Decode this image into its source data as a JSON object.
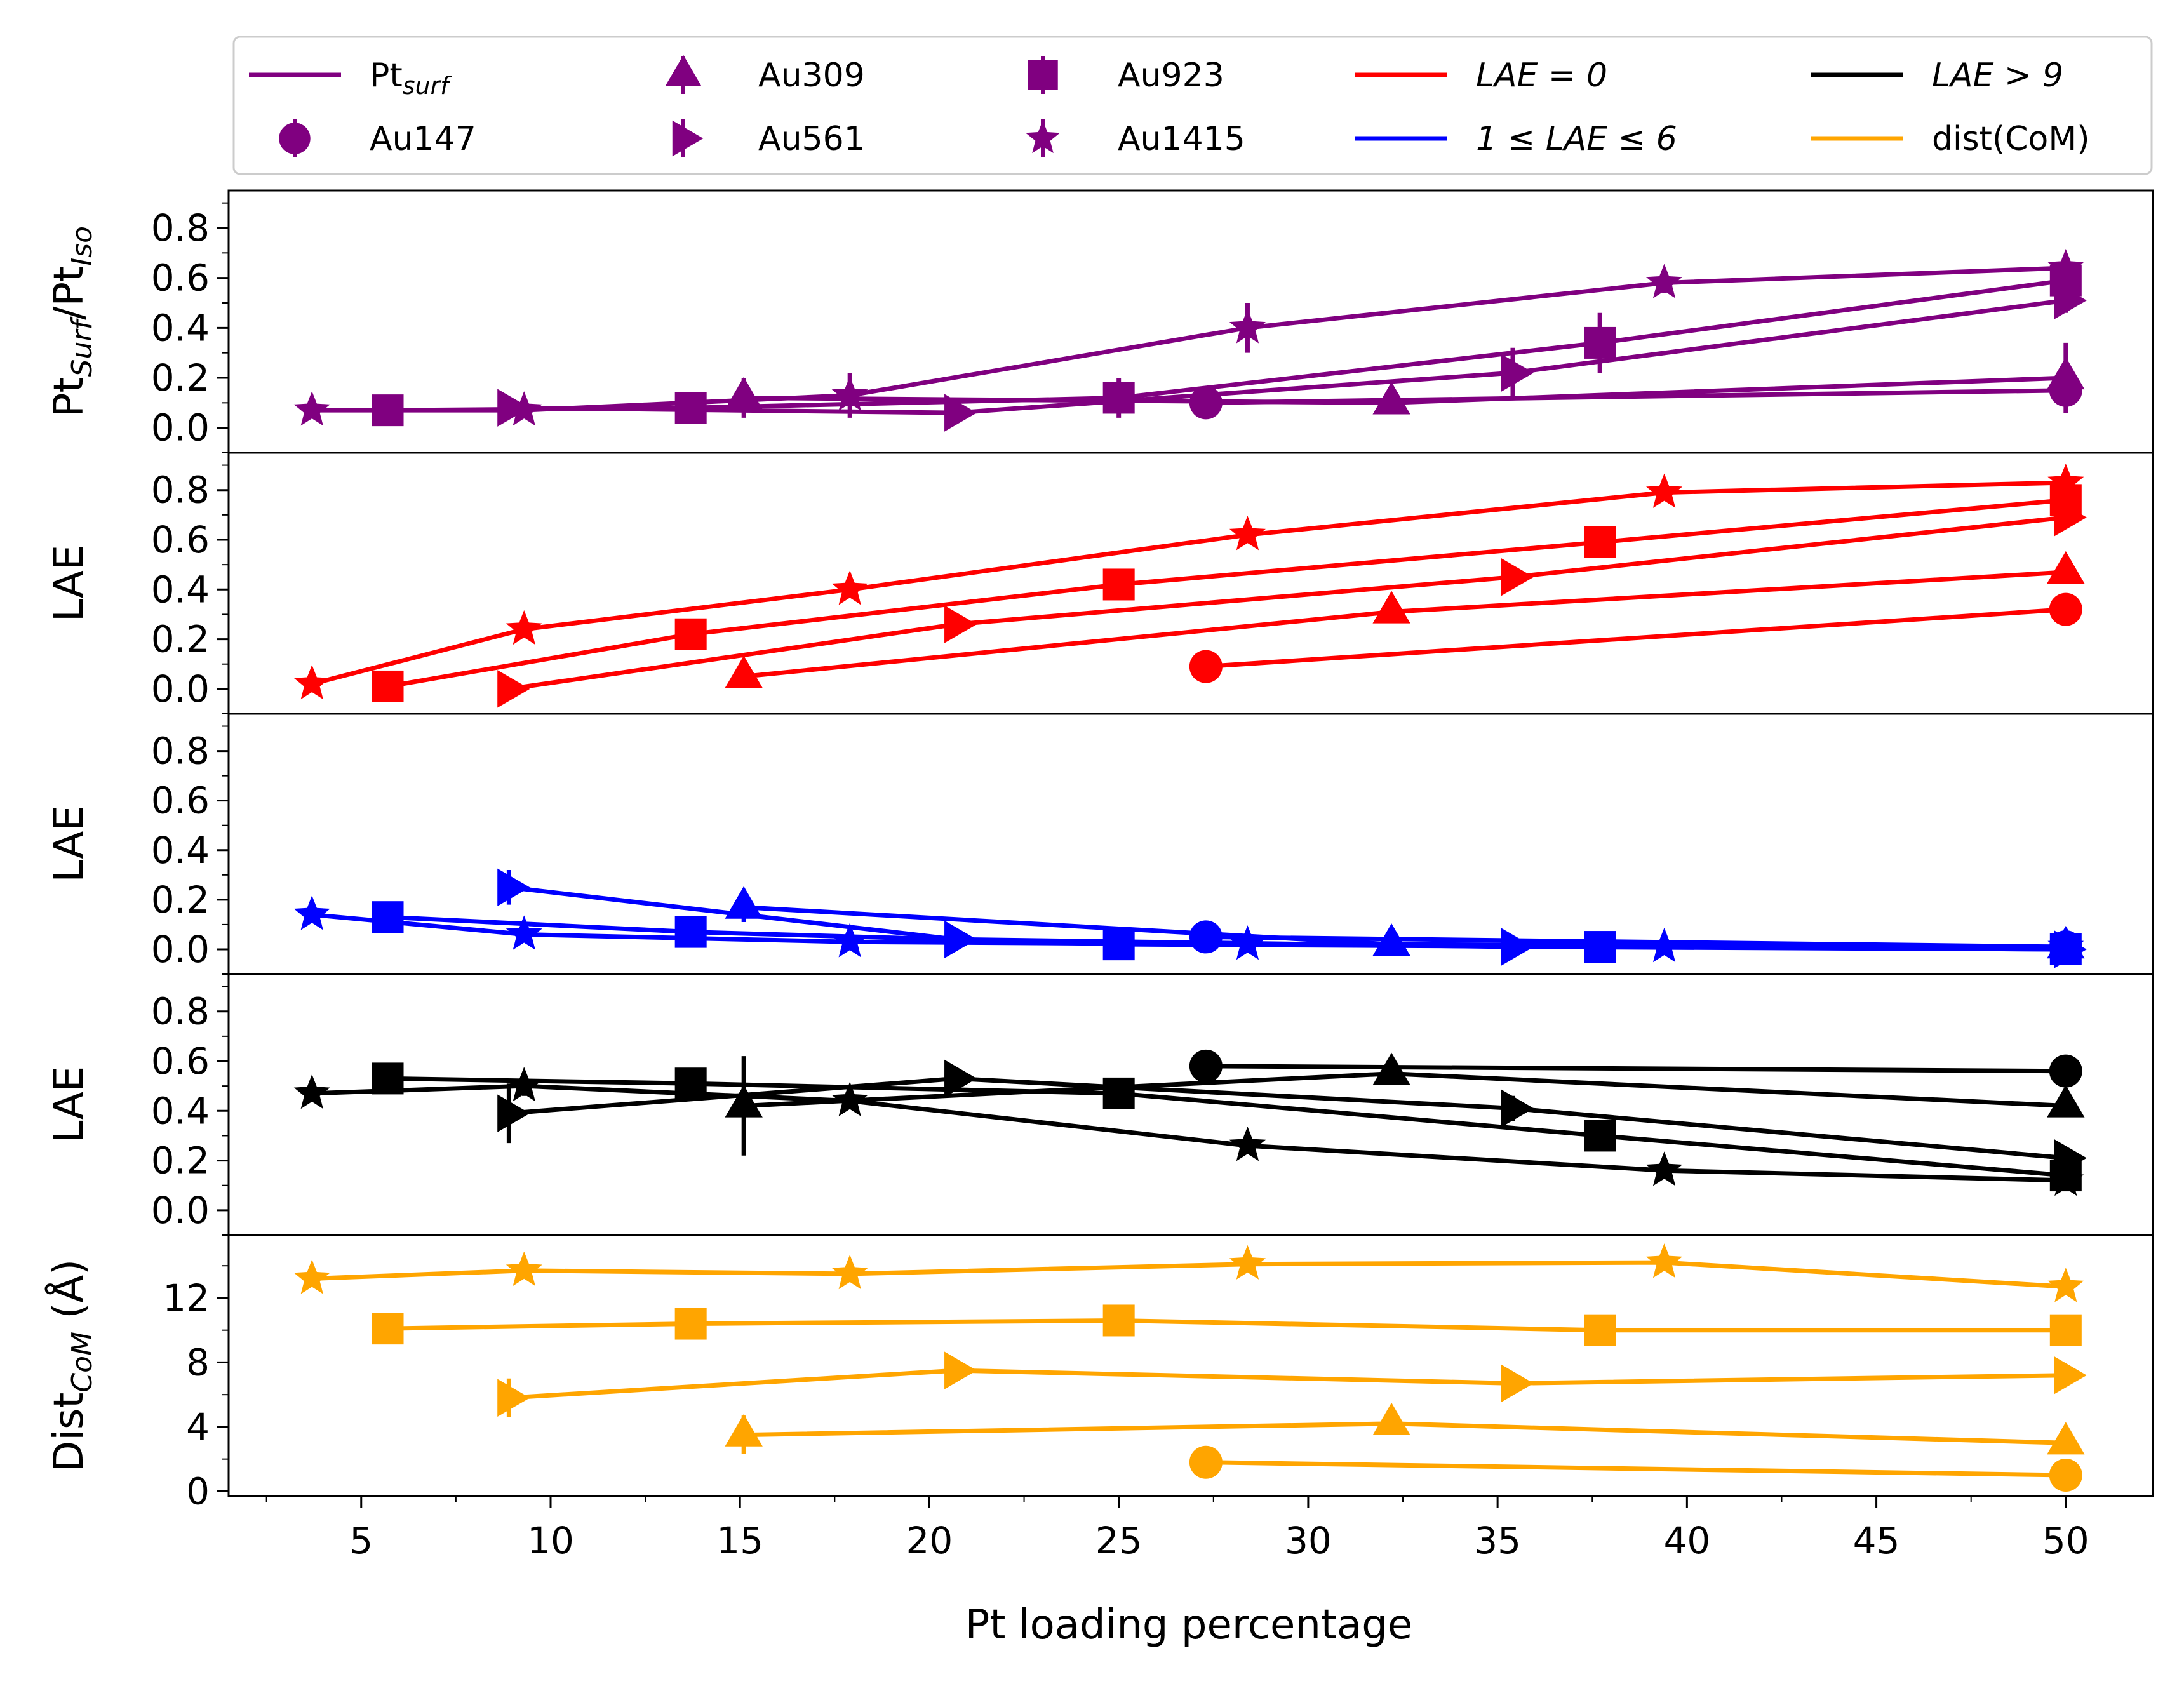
{
  "chart_data": {
    "type": "line",
    "xlabel": "Pt loading percentage",
    "xticks": [
      5,
      10,
      15,
      20,
      25,
      30,
      35,
      40,
      45,
      50
    ],
    "xlim": [
      1.5,
      52.3
    ],
    "colors": {
      "purple": "#800080",
      "red": "#ff0000",
      "blue": "#0000ff",
      "black": "#000000",
      "orange": "#ffa500"
    },
    "legend": {
      "placement": "top",
      "line_entries": [
        {
          "main": "Pt",
          "sub": "surf",
          "italic": false,
          "color": "#800080"
        },
        {
          "main": "LAE = 0",
          "sub": "",
          "italic": true,
          "color": "#ff0000"
        },
        {
          "main": "1 ≤ LAE ≤ 6",
          "sub": "",
          "italic": true,
          "color": "#0000ff"
        },
        {
          "main": "LAE > 9",
          "sub": "",
          "italic": true,
          "color": "#000000"
        },
        {
          "main": "dist(CoM)",
          "sub": "",
          "italic": false,
          "color": "#ffa500"
        }
      ],
      "marker_entries": [
        {
          "label": "Au147",
          "marker": "circle"
        },
        {
          "label": "Au309",
          "marker": "triangle"
        },
        {
          "label": "Au561",
          "marker": "triangle-right"
        },
        {
          "label": "Au923",
          "marker": "square"
        },
        {
          "label": "Au1415",
          "marker": "star"
        }
      ]
    },
    "panels": [
      {
        "ylabel_main": "Pt",
        "ylabel_sub1": "Surf",
        "ylabel_mid": "/Pt",
        "ylabel_sub2": "Iso",
        "color": "#800080",
        "ylim": [
          -0.1,
          0.95
        ],
        "yticks": [
          0.0,
          0.2,
          0.4,
          0.6,
          0.8
        ],
        "ytick_labels": [
          "0.0",
          "0.2",
          "0.4",
          "0.6",
          "0.8"
        ],
        "series": [
          {
            "marker": "circle",
            "x": [
              27.3,
              50.0
            ],
            "y": [
              0.1,
              0.15
            ],
            "err": [
              0.02,
              0.06
            ]
          },
          {
            "marker": "triangle",
            "x": [
              15.1,
              32.2,
              50.0
            ],
            "y": [
              0.12,
              0.1,
              0.2
            ],
            "err": [
              0.08,
              0.03,
              0.14
            ]
          },
          {
            "marker": "triangle-right",
            "x": [
              8.9,
              20.7,
              35.4,
              50.0
            ],
            "y": [
              0.08,
              0.06,
              0.22,
              0.51
            ],
            "err": [
              0.02,
              0.02,
              0.1,
              0.05
            ]
          },
          {
            "marker": "square",
            "x": [
              5.7,
              13.7,
              25.0,
              37.7,
              50.0
            ],
            "y": [
              0.07,
              0.08,
              0.12,
              0.34,
              0.59
            ],
            "err": [
              0.02,
              0.03,
              0.08,
              0.12,
              0.05
            ]
          },
          {
            "marker": "star",
            "x": [
              3.7,
              9.3,
              17.9,
              28.4,
              39.4,
              50.0
            ],
            "y": [
              0.07,
              0.07,
              0.13,
              0.4,
              0.58,
              0.64
            ],
            "err": [
              0.02,
              0.02,
              0.09,
              0.1,
              0.04,
              0.05
            ]
          }
        ]
      },
      {
        "ylabel_main": "LAE",
        "color": "#ff0000",
        "ylim": [
          -0.1,
          0.95
        ],
        "yticks": [
          0.0,
          0.2,
          0.4,
          0.6,
          0.8
        ],
        "ytick_labels": [
          "0.0",
          "0.2",
          "0.4",
          "0.6",
          "0.8"
        ],
        "series": [
          {
            "marker": "circle",
            "x": [
              27.3,
              50.0
            ],
            "y": [
              0.09,
              0.32
            ],
            "err": [
              0,
              0
            ]
          },
          {
            "marker": "triangle",
            "x": [
              15.1,
              32.2,
              50.0
            ],
            "y": [
              0.05,
              0.31,
              0.47
            ],
            "err": [
              0,
              0,
              0
            ]
          },
          {
            "marker": "triangle-right",
            "x": [
              8.9,
              20.7,
              35.4,
              50.0
            ],
            "y": [
              0.0,
              0.26,
              0.45,
              0.69
            ],
            "err": [
              0,
              0,
              0,
              0
            ]
          },
          {
            "marker": "square",
            "x": [
              5.7,
              13.7,
              25.0,
              37.7,
              50.0
            ],
            "y": [
              0.01,
              0.22,
              0.42,
              0.59,
              0.76
            ],
            "err": [
              0,
              0,
              0,
              0,
              0
            ]
          },
          {
            "marker": "star",
            "x": [
              3.7,
              9.3,
              17.9,
              28.4,
              39.4,
              50.0
            ],
            "y": [
              0.02,
              0.24,
              0.4,
              0.62,
              0.79,
              0.83
            ],
            "err": [
              0,
              0,
              0,
              0,
              0,
              0
            ]
          }
        ]
      },
      {
        "ylabel_main": "LAE",
        "color": "#0000ff",
        "ylim": [
          -0.1,
          0.95
        ],
        "yticks": [
          0.0,
          0.2,
          0.4,
          0.6,
          0.8
        ],
        "ytick_labels": [
          "0.0",
          "0.2",
          "0.4",
          "0.6",
          "0.8"
        ],
        "series": [
          {
            "marker": "circle",
            "x": [
              27.3,
              50.0
            ],
            "y": [
              0.05,
              0.01
            ],
            "err": [
              0.01,
              0
            ]
          },
          {
            "marker": "triangle",
            "x": [
              15.1,
              32.2,
              50.0
            ],
            "y": [
              0.17,
              0.02,
              0.01
            ],
            "err": [
              0.06,
              0.01,
              0
            ]
          },
          {
            "marker": "triangle-right",
            "x": [
              8.9,
              20.7,
              35.4,
              50.0
            ],
            "y": [
              0.25,
              0.04,
              0.01,
              0.0
            ],
            "err": [
              0.07,
              0.01,
              0,
              0
            ]
          },
          {
            "marker": "square",
            "x": [
              5.7,
              13.7,
              25.0,
              37.7,
              50.0
            ],
            "y": [
              0.13,
              0.07,
              0.02,
              0.01,
              0.0
            ],
            "err": [
              0.02,
              0.01,
              0,
              0,
              0
            ]
          },
          {
            "marker": "star",
            "x": [
              3.7,
              9.3,
              17.9,
              28.4,
              39.4,
              50.0
            ],
            "y": [
              0.14,
              0.06,
              0.03,
              0.02,
              0.01,
              0.01
            ],
            "err": [
              0.02,
              0.01,
              0.01,
              0,
              0,
              0
            ]
          }
        ]
      },
      {
        "ylabel_main": "LAE",
        "color": "#000000",
        "ylim": [
          -0.1,
          0.95
        ],
        "yticks": [
          0.0,
          0.2,
          0.4,
          0.6,
          0.8
        ],
        "ytick_labels": [
          "0.0",
          "0.2",
          "0.4",
          "0.6",
          "0.8"
        ],
        "series": [
          {
            "marker": "circle",
            "x": [
              27.3,
              50.0
            ],
            "y": [
              0.58,
              0.56
            ],
            "err": [
              0.01,
              0.01
            ]
          },
          {
            "marker": "triangle",
            "x": [
              15.1,
              32.2,
              50.0
            ],
            "y": [
              0.42,
              0.55,
              0.42
            ],
            "err": [
              0.2,
              0.03,
              0.02
            ]
          },
          {
            "marker": "triangle-right",
            "x": [
              8.9,
              20.7,
              35.4,
              50.0
            ],
            "y": [
              0.39,
              0.53,
              0.41,
              0.21
            ],
            "err": [
              0.12,
              0.02,
              0.05,
              0.02
            ]
          },
          {
            "marker": "square",
            "x": [
              5.7,
              13.7,
              25.0,
              37.7,
              50.0
            ],
            "y": [
              0.53,
              0.51,
              0.47,
              0.3,
              0.14
            ],
            "err": [
              0.02,
              0.03,
              0.02,
              0.02,
              0.01
            ]
          },
          {
            "marker": "star",
            "x": [
              3.7,
              9.3,
              17.9,
              28.4,
              39.4,
              50.0
            ],
            "y": [
              0.47,
              0.5,
              0.44,
              0.26,
              0.16,
              0.12
            ],
            "err": [
              0.02,
              0.04,
              0.03,
              0.02,
              0.01,
              0.01
            ]
          }
        ]
      },
      {
        "ylabel_main": "Dist",
        "ylabel_sub1": "CoM",
        "ylabel_mid": " (Å)",
        "color": "#ffa500",
        "ylim": [
          -0.3,
          15.9
        ],
        "yticks": [
          0,
          4,
          8,
          12
        ],
        "ytick_labels": [
          "0",
          "4",
          "8",
          "12"
        ],
        "series": [
          {
            "marker": "circle",
            "x": [
              27.3,
              50.0
            ],
            "y": [
              1.8,
              1.0
            ],
            "err": [
              0.2,
              0.2
            ]
          },
          {
            "marker": "triangle",
            "x": [
              15.1,
              32.2,
              50.0
            ],
            "y": [
              3.5,
              4.2,
              3.0
            ],
            "err": [
              1.2,
              0.3,
              0.3
            ]
          },
          {
            "marker": "triangle-right",
            "x": [
              8.9,
              20.7,
              35.4,
              50.0
            ],
            "y": [
              5.8,
              7.5,
              6.7,
              7.2
            ],
            "err": [
              1.2,
              0.4,
              0.5,
              0.3
            ]
          },
          {
            "marker": "square",
            "x": [
              5.7,
              13.7,
              25.0,
              37.7,
              50.0
            ],
            "y": [
              10.1,
              10.4,
              10.6,
              10.0,
              10.0
            ],
            "err": [
              0.4,
              0.3,
              0.4,
              0.4,
              0.3
            ]
          },
          {
            "marker": "star",
            "x": [
              3.7,
              9.3,
              17.9,
              28.4,
              39.4,
              50.0
            ],
            "y": [
              13.2,
              13.7,
              13.5,
              14.1,
              14.2,
              12.7
            ],
            "err": [
              0.4,
              0.4,
              0.5,
              0.4,
              0.4,
              0.3
            ]
          }
        ]
      }
    ]
  }
}
